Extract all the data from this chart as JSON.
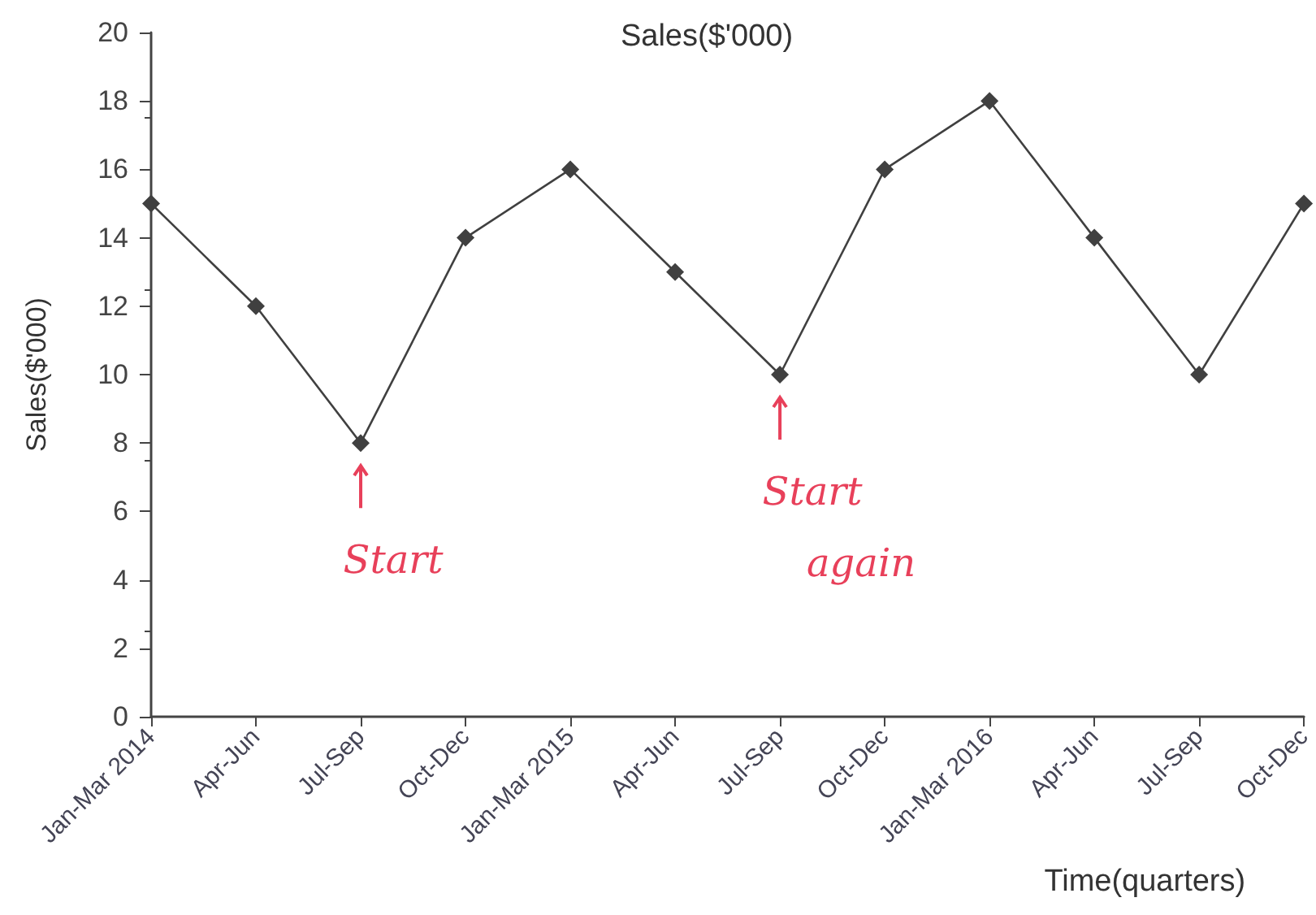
{
  "chart_data": {
    "type": "line",
    "title": "Sales($'000)",
    "xlabel": "Time(quarters)",
    "ylabel": "Sales($'000)",
    "categories": [
      "Jan-Mar 2014",
      "Apr-Jun",
      "Jul-Sep",
      "Oct-Dec",
      "Jan-Mar 2015",
      "Apr-Jun",
      "Jul-Sep",
      "Oct-Dec",
      "Jan-Mar 2016",
      "Apr-Jun",
      "Jul-Sep",
      "Oct-Dec"
    ],
    "series": [
      {
        "color": "#404040",
        "values": [
          15,
          12,
          8,
          14,
          16,
          13,
          10,
          16,
          18,
          14,
          10,
          15
        ]
      }
    ],
    "ylim": [
      0,
      20
    ],
    "yticks": [
      0,
      2,
      4,
      6,
      8,
      10,
      12,
      14,
      16,
      18,
      20
    ],
    "grid": false,
    "marker": "diamond",
    "line_style": "solid",
    "annotations": [
      "Start",
      "Start again"
    ]
  }
}
